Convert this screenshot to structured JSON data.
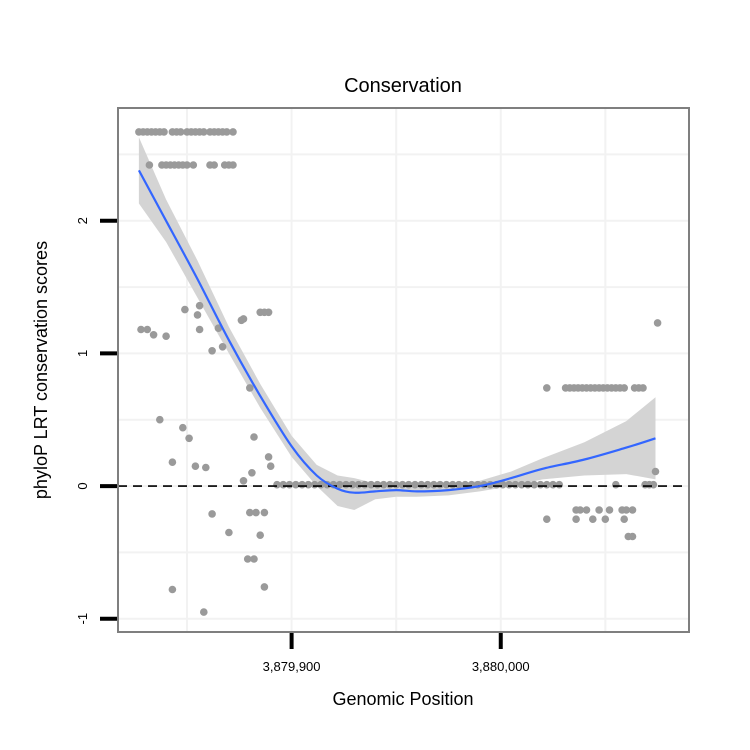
{
  "chart_data": {
    "type": "scatter",
    "title": "Conservation",
    "xlabel": "Genomic Position",
    "ylabel": "phyloP LRT conservation scores",
    "xlim": [
      3879817,
      3880090
    ],
    "ylim": [
      -1.1,
      2.85
    ],
    "x_ticks": [
      {
        "value": 3879900,
        "label": "3,879,900"
      },
      {
        "value": 3880000,
        "label": "3,880,000"
      }
    ],
    "y_ticks": [
      {
        "value": -1,
        "label": "-1"
      },
      {
        "value": 0,
        "label": "0"
      },
      {
        "value": 1,
        "label": "1"
      },
      {
        "value": 2,
        "label": "2"
      }
    ],
    "grid": true,
    "reference_line": {
      "y": 0,
      "style": "dashed",
      "color": "#000000"
    },
    "colors": {
      "points": "#9a9a9a",
      "smooth_line": "#3366ff",
      "ribbon": "#d4d4d4",
      "panel_border": "#7f7f7f",
      "grid": "#f2f2f2"
    },
    "series": [
      {
        "name": "observed",
        "kind": "points",
        "points": [
          [
            3879827,
            2.67
          ],
          [
            3879829,
            2.67
          ],
          [
            3879831,
            2.67
          ],
          [
            3879833,
            2.67
          ],
          [
            3879835,
            2.67
          ],
          [
            3879837,
            2.67
          ],
          [
            3879839,
            2.67
          ],
          [
            3879843,
            2.67
          ],
          [
            3879845,
            2.67
          ],
          [
            3879847,
            2.67
          ],
          [
            3879850,
            2.67
          ],
          [
            3879852,
            2.67
          ],
          [
            3879854,
            2.67
          ],
          [
            3879856,
            2.67
          ],
          [
            3879858,
            2.67
          ],
          [
            3879861,
            2.67
          ],
          [
            3879863,
            2.67
          ],
          [
            3879865,
            2.67
          ],
          [
            3879867,
            2.67
          ],
          [
            3879869,
            2.67
          ],
          [
            3879872,
            2.67
          ],
          [
            3879832,
            2.42
          ],
          [
            3879838,
            2.42
          ],
          [
            3879840,
            2.42
          ],
          [
            3879842,
            2.42
          ],
          [
            3879844,
            2.42
          ],
          [
            3879846,
            2.42
          ],
          [
            3879848,
            2.42
          ],
          [
            3879850,
            2.42
          ],
          [
            3879853,
            2.42
          ],
          [
            3879861,
            2.42
          ],
          [
            3879863,
            2.42
          ],
          [
            3879868,
            2.42
          ],
          [
            3879870,
            2.42
          ],
          [
            3879872,
            2.42
          ],
          [
            3879828,
            1.18
          ],
          [
            3879831,
            1.18
          ],
          [
            3879834,
            1.14
          ],
          [
            3879840,
            1.13
          ],
          [
            3879849,
            1.33
          ],
          [
            3879855,
            1.29
          ],
          [
            3879856,
            1.36
          ],
          [
            3879856,
            1.18
          ],
          [
            3879865,
            1.19
          ],
          [
            3879867,
            1.05
          ],
          [
            3879862,
            1.02
          ],
          [
            3879876,
            1.25
          ],
          [
            3879877,
            1.26
          ],
          [
            3879885,
            1.31
          ],
          [
            3879887,
            1.31
          ],
          [
            3879889,
            1.31
          ],
          [
            3879837,
            0.5
          ],
          [
            3879848,
            0.44
          ],
          [
            3879851,
            0.36
          ],
          [
            3879843,
            0.18
          ],
          [
            3879854,
            0.15
          ],
          [
            3879859,
            0.14
          ],
          [
            3879880,
            0.74
          ],
          [
            3879882,
            0.37
          ],
          [
            3879889,
            0.22
          ],
          [
            3879890,
            0.15
          ],
          [
            3879877,
            0.04
          ],
          [
            3879881,
            0.1
          ],
          [
            3879880,
            -0.2
          ],
          [
            3879883,
            -0.2
          ],
          [
            3879887,
            -0.2
          ],
          [
            3879862,
            -0.21
          ],
          [
            3879870,
            -0.35
          ],
          [
            3879885,
            -0.37
          ],
          [
            3879879,
            -0.55
          ],
          [
            3879882,
            -0.55
          ],
          [
            3879887,
            -0.76
          ],
          [
            3879843,
            -0.78
          ],
          [
            3879858,
            -0.95
          ],
          [
            3879893,
            0.01
          ],
          [
            3879896,
            0.01
          ],
          [
            3879899,
            0.01
          ],
          [
            3879902,
            0.01
          ],
          [
            3879905,
            0.01
          ],
          [
            3879908,
            0.01
          ],
          [
            3879911,
            0.01
          ],
          [
            3879914,
            0.01
          ],
          [
            3879917,
            0.01
          ],
          [
            3879920,
            0.01
          ],
          [
            3879923,
            0.01
          ],
          [
            3879926,
            0.01
          ],
          [
            3879929,
            0.01
          ],
          [
            3879932,
            0.01
          ],
          [
            3879935,
            0.01
          ],
          [
            3879938,
            0.01
          ],
          [
            3879941,
            0.01
          ],
          [
            3879944,
            0.01
          ],
          [
            3879947,
            0.01
          ],
          [
            3879950,
            0.01
          ],
          [
            3879953,
            0.01
          ],
          [
            3879956,
            0.01
          ],
          [
            3879959,
            0.01
          ],
          [
            3879962,
            0.01
          ],
          [
            3879965,
            0.01
          ],
          [
            3879968,
            0.01
          ],
          [
            3879971,
            0.01
          ],
          [
            3879974,
            0.01
          ],
          [
            3879977,
            0.01
          ],
          [
            3879980,
            0.01
          ],
          [
            3879983,
            0.01
          ],
          [
            3879986,
            0.01
          ],
          [
            3879989,
            0.01
          ],
          [
            3879992,
            0.01
          ],
          [
            3879995,
            0.01
          ],
          [
            3879998,
            0.01
          ],
          [
            3880001,
            0.01
          ],
          [
            3880004,
            0.01
          ],
          [
            3880007,
            0.01
          ],
          [
            3880010,
            0.01
          ],
          [
            3880013,
            0.01
          ],
          [
            3880016,
            0.01
          ],
          [
            3880019,
            0.01
          ],
          [
            3880022,
            0.01
          ],
          [
            3880025,
            0.01
          ],
          [
            3880028,
            0.01
          ],
          [
            3880022,
            0.74
          ],
          [
            3880031,
            0.74
          ],
          [
            3880033,
            0.74
          ],
          [
            3880035,
            0.74
          ],
          [
            3880037,
            0.74
          ],
          [
            3880039,
            0.74
          ],
          [
            3880041,
            0.74
          ],
          [
            3880043,
            0.74
          ],
          [
            3880045,
            0.74
          ],
          [
            3880047,
            0.74
          ],
          [
            3880049,
            0.74
          ],
          [
            3880051,
            0.74
          ],
          [
            3880053,
            0.74
          ],
          [
            3880055,
            0.74
          ],
          [
            3880057,
            0.74
          ],
          [
            3880059,
            0.74
          ],
          [
            3880064,
            0.74
          ],
          [
            3880066,
            0.74
          ],
          [
            3880068,
            0.74
          ],
          [
            3880036,
            -0.18
          ],
          [
            3880038,
            -0.18
          ],
          [
            3880041,
            -0.18
          ],
          [
            3880047,
            -0.18
          ],
          [
            3880052,
            -0.18
          ],
          [
            3880058,
            -0.18
          ],
          [
            3880060,
            -0.18
          ],
          [
            3880063,
            -0.18
          ],
          [
            3880036,
            -0.25
          ],
          [
            3880044,
            -0.25
          ],
          [
            3880050,
            -0.25
          ],
          [
            3880059,
            -0.25
          ],
          [
            3880022,
            -0.25
          ],
          [
            3880061,
            -0.38
          ],
          [
            3880063,
            -0.38
          ],
          [
            3880055,
            0.01
          ],
          [
            3880069,
            0.01
          ],
          [
            3880071,
            0.01
          ],
          [
            3880073,
            0.01
          ],
          [
            3880074,
            0.11
          ],
          [
            3880075,
            1.23
          ]
        ]
      },
      {
        "name": "loess fit",
        "kind": "line",
        "x": [
          3879827,
          3879840,
          3879855,
          3879870,
          3879885,
          3879900,
          3879912,
          3879922,
          3879930,
          3879940,
          3879950,
          3879960,
          3879975,
          3879990,
          3880005,
          3880020,
          3880040,
          3880060,
          3880074
        ],
        "y": [
          2.38,
          2.0,
          1.56,
          1.1,
          0.68,
          0.3,
          0.08,
          -0.02,
          -0.05,
          -0.04,
          -0.03,
          -0.04,
          -0.03,
          0.0,
          0.06,
          0.13,
          0.2,
          0.29,
          0.36
        ],
        "ribbon_lower": [
          2.13,
          1.84,
          1.42,
          1.0,
          0.59,
          0.22,
          0.0,
          -0.15,
          -0.18,
          -0.1,
          -0.08,
          -0.08,
          -0.07,
          -0.04,
          0.0,
          0.05,
          0.08,
          0.09,
          0.05
        ],
        "ribbon_upper": [
          2.63,
          2.16,
          1.7,
          1.2,
          0.77,
          0.38,
          0.16,
          0.08,
          0.06,
          0.02,
          0.02,
          0.0,
          0.01,
          0.04,
          0.11,
          0.21,
          0.33,
          0.49,
          0.67
        ]
      }
    ]
  }
}
